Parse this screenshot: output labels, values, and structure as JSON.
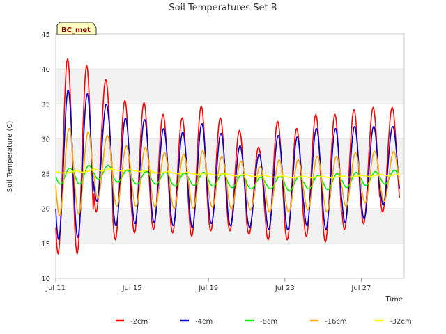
{
  "chart_data": {
    "type": "line",
    "title": "Soil Temperatures Set B",
    "xlabel": "Time",
    "ylabel": "Soil Temperature (C)",
    "ylim": [
      10,
      45
    ],
    "xlim": [
      "Jul 11",
      "Jul 29"
    ],
    "xticks": [
      "Jul 11",
      "Jul 15",
      "Jul 19",
      "Jul 23",
      "Jul 27"
    ],
    "yticks": [
      10,
      15,
      20,
      25,
      30,
      35,
      40,
      45
    ],
    "grid": "alternating horizontal bands",
    "legend_position": "bottom",
    "badge": "BC_met",
    "sampling": "daily minimum and maximum, Jul 11 to Jul 28",
    "series": [
      {
        "name": "-2cm",
        "color": "#ff0000",
        "min": [
          13.5,
          13.5,
          19.5,
          15.5,
          16.5,
          17,
          16.5,
          16,
          16.8,
          16.8,
          16.3,
          15.5,
          15.5,
          16,
          15.2,
          17,
          17.8,
          19.5
        ],
        "max": [
          41.5,
          40.5,
          38.5,
          35.5,
          35.2,
          33.5,
          33,
          34.7,
          33,
          31.2,
          28.8,
          32.5,
          31.5,
          33.5,
          33.5,
          34.2,
          34.5,
          34.5
        ]
      },
      {
        "name": "-4cm",
        "color": "#0000cc",
        "min": [
          15.5,
          15.8,
          21,
          17.5,
          17.8,
          18,
          17.5,
          17.2,
          17.8,
          17.5,
          17.3,
          17,
          17,
          17.5,
          17,
          18,
          18.5,
          20.5
        ],
        "max": [
          37,
          36.5,
          35,
          33,
          32.8,
          31.5,
          31,
          32.2,
          30.8,
          29,
          27.8,
          30.5,
          30.3,
          31.5,
          31.5,
          31.8,
          31.8,
          31.8
        ]
      },
      {
        "name": "-8cm",
        "color": "#00ee00",
        "min": [
          23.5,
          23.5,
          24.2,
          23.8,
          23.5,
          23.5,
          23.2,
          23.3,
          23.2,
          23,
          22.8,
          22.8,
          22.5,
          22.8,
          22.7,
          23,
          23.3,
          23.5
        ],
        "max": [
          25.8,
          26.2,
          26.2,
          25.5,
          25.3,
          25.2,
          25.1,
          25.2,
          25,
          24.8,
          24.5,
          24.6,
          24.6,
          24.8,
          25,
          25.2,
          25.3,
          25.5
        ]
      },
      {
        "name": "-16cm",
        "color": "#ffa500",
        "min": [
          19,
          19.2,
          21.5,
          20.3,
          20.3,
          20.2,
          20,
          20,
          20.2,
          20,
          19.8,
          19.5,
          19.5,
          19.8,
          19.5,
          20.3,
          20.8,
          21
        ],
        "max": [
          31.5,
          31,
          30.5,
          29,
          28.8,
          28,
          27.8,
          28.3,
          27.5,
          26.8,
          26,
          27,
          27,
          27.5,
          27.5,
          28,
          28.2,
          28.2
        ]
      },
      {
        "name": "-32cm",
        "color": "#ffff00",
        "min": [
          25.1,
          25.2,
          25.4,
          25.4,
          25.3,
          25.1,
          25,
          24.9,
          24.8,
          24.7,
          24.6,
          24.5,
          24.4,
          24.4,
          24.4,
          24.5,
          24.6,
          24.7
        ],
        "max": [
          25.3,
          25.5,
          25.7,
          25.6,
          25.5,
          25.3,
          25.2,
          25.1,
          25,
          24.9,
          24.8,
          24.7,
          24.6,
          24.6,
          24.6,
          24.7,
          24.8,
          24.9
        ]
      }
    ]
  }
}
